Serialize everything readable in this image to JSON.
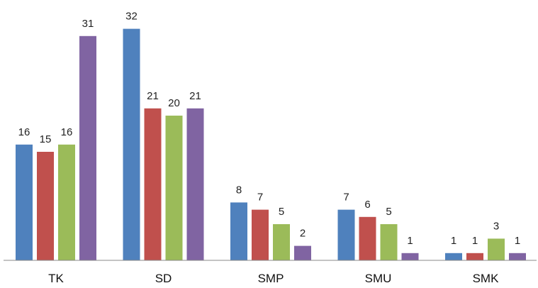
{
  "chart_data": {
    "type": "bar",
    "title": "",
    "xlabel": "",
    "ylabel": "",
    "ylim": [
      0,
      32
    ],
    "grid": false,
    "legend": "none",
    "categories": [
      "TK",
      "SD",
      "SMP",
      "SMU",
      "SMK"
    ],
    "series": [
      {
        "color": "#4F81BD",
        "values": [
          16,
          32,
          8,
          7,
          1
        ]
      },
      {
        "color": "#C0504D",
        "values": [
          15,
          21,
          7,
          6,
          1
        ]
      },
      {
        "color": "#9BBB59",
        "values": [
          16,
          20,
          5,
          5,
          3
        ]
      },
      {
        "color": "#8064A2",
        "values": [
          31,
          21,
          2,
          1,
          1
        ]
      }
    ],
    "axis_color": "#888888"
  }
}
